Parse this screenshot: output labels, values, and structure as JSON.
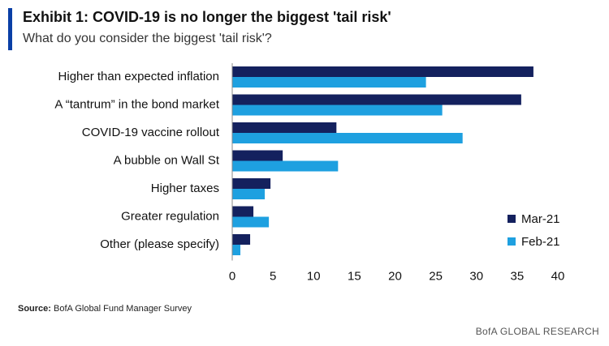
{
  "header": {
    "title": "Exhibit 1: COVID-19 is no longer the biggest 'tail risk'",
    "subtitle": "What do you consider the biggest 'tail risk'?"
  },
  "source": {
    "label": "Source:",
    "text": " BofA Global Fund Manager Survey"
  },
  "footer": {
    "brand": "BofA GLOBAL RESEARCH"
  },
  "colors": {
    "accent": "#0a3fa6",
    "mar21": "#14215e",
    "feb21": "#1ea0e0",
    "axis": "#888888"
  },
  "chart_data": {
    "type": "bar",
    "orientation": "horizontal",
    "categories": [
      "Higher than expected inflation",
      "A “tantrum” in the bond market",
      "COVID-19 vaccine rollout",
      "A bubble on Wall St",
      "Higher taxes",
      "Greater regulation",
      "Other (please specify)"
    ],
    "series": [
      {
        "name": "Mar-21",
        "values": [
          37,
          35.5,
          12.8,
          6.2,
          4.7,
          2.6,
          2.2
        ]
      },
      {
        "name": "Feb-21",
        "values": [
          23.8,
          25.8,
          28.3,
          13,
          4,
          4.5,
          1
        ]
      }
    ],
    "xlim": [
      0,
      40
    ],
    "xticks": [
      0,
      5,
      10,
      15,
      20,
      25,
      30,
      35,
      40
    ],
    "legend_position": "bottom-right",
    "grid": false
  }
}
